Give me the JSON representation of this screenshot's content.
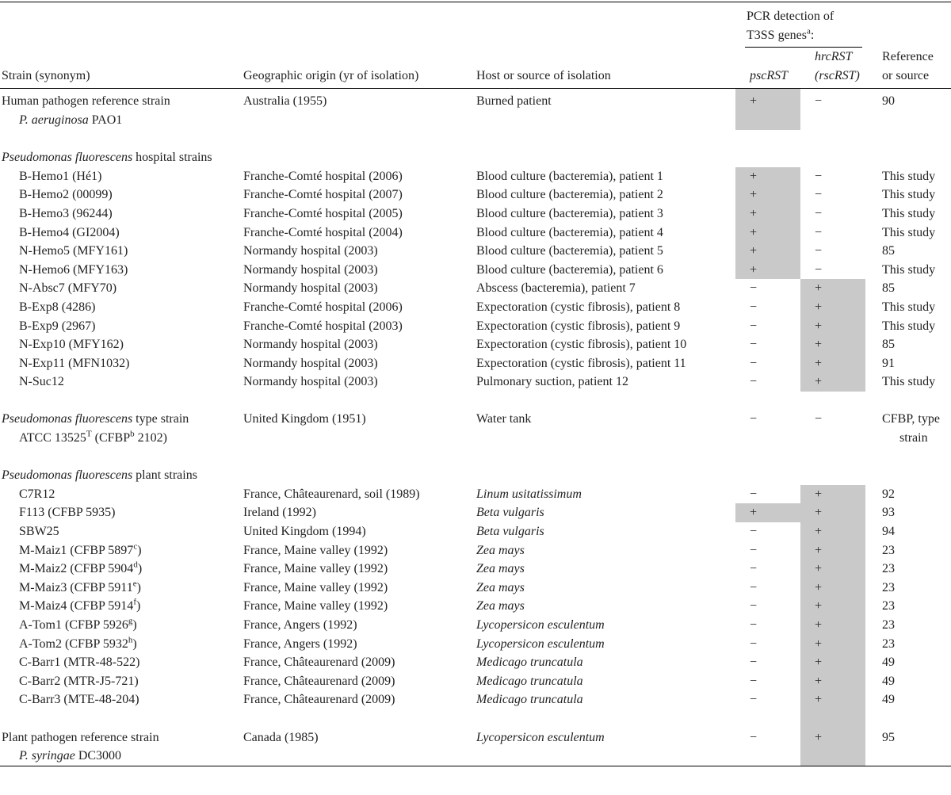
{
  "table": {
    "header": {
      "group": [
        "PCR detection of T3SS genes",
        {
          "sup": "a"
        },
        ":"
      ],
      "columns": [
        "Strain (synonym)",
        "Geographic origin (yr of isolation)",
        "Host or source of isolation",
        [
          {
            "i": "pscRST"
          }
        ],
        {
          "lines": [
            [
              {
                "i": "hrcRST"
              }
            ],
            [
              {
                "i": "(rscRST)"
              }
            ]
          ]
        },
        {
          "lines": [
            "Reference",
            "or source"
          ]
        }
      ]
    },
    "sections": [
      {
        "rows": [
          {
            "cells": [
              {
                "lines": [
                  "Human pathogen reference strain",
                  [
                    {
                      "i": "P. aeruginosa"
                    },
                    " PAO1"
                  ]
                ]
              },
              "Australia (1955)",
              "Burned patient",
              "+",
              "−",
              "90"
            ],
            "shaded": [
              true,
              false
            ]
          }
        ]
      },
      {
        "title": [
          {
            "i": "Pseudomonas fluorescens"
          },
          " hospital strains"
        ],
        "rows": [
          {
            "cells": [
              "B-Hemo1 (Hé1)",
              "Franche-Comté hospital (2006)",
              "Blood culture (bacteremia), patient 1",
              "+",
              "−",
              "This study"
            ],
            "shaded": [
              true,
              false
            ]
          },
          {
            "cells": [
              "B-Hemo2 (00099)",
              "Franche-Comté hospital (2007)",
              "Blood culture (bacteremia), patient 2",
              "+",
              "−",
              "This study"
            ],
            "shaded": [
              true,
              false
            ]
          },
          {
            "cells": [
              "B-Hemo3 (96244)",
              "Franche-Comté hospital (2005)",
              "Blood culture (bacteremia), patient 3",
              "+",
              "−",
              "This study"
            ],
            "shaded": [
              true,
              false
            ]
          },
          {
            "cells": [
              "B-Hemo4 (GI2004)",
              "Franche-Comté hospital (2004)",
              "Blood culture (bacteremia), patient 4",
              "+",
              "−",
              "This study"
            ],
            "shaded": [
              true,
              false
            ]
          },
          {
            "cells": [
              "N-Hemo5 (MFY161)",
              "Normandy hospital (2003)",
              "Blood culture (bacteremia), patient 5",
              "+",
              "−",
              "85"
            ],
            "shaded": [
              true,
              false
            ]
          },
          {
            "cells": [
              "N-Hemo6 (MFY163)",
              "Normandy hospital (2003)",
              "Blood culture (bacteremia), patient 6",
              "+",
              "−",
              "This study"
            ],
            "shaded": [
              true,
              false
            ]
          },
          {
            "cells": [
              "N-Absc7 (MFY70)",
              "Normandy hospital (2003)",
              "Abscess (bacteremia), patient 7",
              "−",
              "+",
              "85"
            ],
            "shaded": [
              false,
              true
            ]
          },
          {
            "cells": [
              "B-Exp8 (4286)",
              "Franche-Comté hospital (2006)",
              "Expectoration (cystic fibrosis), patient 8",
              "−",
              "+",
              "This study"
            ],
            "shaded": [
              false,
              true
            ]
          },
          {
            "cells": [
              "B-Exp9 (2967)",
              "Franche-Comté hospital (2003)",
              "Expectoration (cystic fibrosis), patient 9",
              "−",
              "+",
              "This study"
            ],
            "shaded": [
              false,
              true
            ]
          },
          {
            "cells": [
              "N-Exp10 (MFY162)",
              "Normandy hospital (2003)",
              "Expectoration (cystic fibrosis), patient 10",
              "−",
              "+",
              "85"
            ],
            "shaded": [
              false,
              true
            ]
          },
          {
            "cells": [
              "N-Exp11 (MFN1032)",
              "Normandy hospital (2003)",
              "Expectoration (cystic fibrosis), patient 11",
              "−",
              "+",
              "91"
            ],
            "shaded": [
              false,
              true
            ]
          },
          {
            "cells": [
              "N-Suc12",
              "Normandy hospital (2003)",
              "Pulmonary suction, patient 12",
              "−",
              "+",
              "This study"
            ],
            "shaded": [
              false,
              true
            ]
          }
        ]
      },
      {
        "rows": [
          {
            "cells": [
              {
                "lines": [
                  [
                    {
                      "i": "Pseudomonas fluorescens"
                    },
                    " type strain"
                  ],
                  [
                    "ATCC 13525",
                    {
                      "sup": "T"
                    },
                    " (CFBP",
                    {
                      "sup": "b"
                    },
                    " 2102)"
                  ]
                ]
              },
              "United Kingdom (1951)",
              "Water tank",
              "−",
              "−",
              {
                "lines": [
                  "CFBP, type",
                  "strain"
                ]
              }
            ],
            "shaded": [
              false,
              false
            ]
          }
        ]
      },
      {
        "title": [
          {
            "i": "Pseudomonas fluorescens"
          },
          " plant strains"
        ],
        "rows": [
          {
            "cells": [
              "C7R12",
              "France, Châteaurenard, soil (1989)",
              [
                {
                  "i": "Linum usitatissimum"
                }
              ],
              "−",
              "+",
              "92"
            ],
            "shaded": [
              false,
              true
            ]
          },
          {
            "cells": [
              "F113 (CFBP 5935)",
              "Ireland (1992)",
              [
                {
                  "i": "Beta vulgaris"
                }
              ],
              "+",
              "+",
              "93"
            ],
            "shaded": [
              true,
              true
            ]
          },
          {
            "cells": [
              "SBW25",
              "United Kingdom (1994)",
              [
                {
                  "i": "Beta vulgaris"
                }
              ],
              "−",
              "+",
              "94"
            ],
            "shaded": [
              false,
              true
            ]
          },
          {
            "cells": [
              [
                "M-Maiz1 (CFBP 5897",
                {
                  "sup": "c"
                },
                ")"
              ],
              "France, Maine valley (1992)",
              [
                {
                  "i": "Zea mays"
                }
              ],
              "−",
              "+",
              "23"
            ],
            "shaded": [
              false,
              true
            ]
          },
          {
            "cells": [
              [
                "M-Maiz2 (CFBP 5904",
                {
                  "sup": "d"
                },
                ")"
              ],
              "France, Maine valley (1992)",
              [
                {
                  "i": "Zea mays"
                }
              ],
              "−",
              "+",
              "23"
            ],
            "shaded": [
              false,
              true
            ]
          },
          {
            "cells": [
              [
                "M-Maiz3 (CFBP 5911",
                {
                  "sup": "e"
                },
                ")"
              ],
              "France, Maine valley (1992)",
              [
                {
                  "i": "Zea mays"
                }
              ],
              "−",
              "+",
              "23"
            ],
            "shaded": [
              false,
              true
            ]
          },
          {
            "cells": [
              [
                "M-Maiz4 (CFBP 5914",
                {
                  "sup": "f"
                },
                ")"
              ],
              "France, Maine valley (1992)",
              [
                {
                  "i": "Zea mays"
                }
              ],
              "−",
              "+",
              "23"
            ],
            "shaded": [
              false,
              true
            ]
          },
          {
            "cells": [
              [
                "A-Tom1 (CFBP 5926",
                {
                  "sup": "g"
                },
                ")"
              ],
              "France, Angers (1992)",
              [
                {
                  "i": "Lycopersicon esculentum"
                }
              ],
              "−",
              "+",
              "23"
            ],
            "shaded": [
              false,
              true
            ]
          },
          {
            "cells": [
              [
                "A-Tom2 (CFBP 5932",
                {
                  "sup": "h"
                },
                ")"
              ],
              "France, Angers (1992)",
              [
                {
                  "i": "Lycopersicon esculentum"
                }
              ],
              "−",
              "+",
              "23"
            ],
            "shaded": [
              false,
              true
            ]
          },
          {
            "cells": [
              "C-Barr1 (MTR-48-522)",
              "France, Châteaurenard (2009)",
              [
                {
                  "i": "Medicago truncatula"
                }
              ],
              "−",
              "+",
              "49"
            ],
            "shaded": [
              false,
              true
            ]
          },
          {
            "cells": [
              "C-Barr2 (MTR-J5-721)",
              "France, Châteaurenard (2009)",
              [
                {
                  "i": "Medicago truncatula"
                }
              ],
              "−",
              "+",
              "49"
            ],
            "shaded": [
              false,
              true
            ]
          },
          {
            "cells": [
              "C-Barr3 (MTE-48-204)",
              "France, Châteaurenard (2009)",
              [
                {
                  "i": "Medicago truncatula"
                }
              ],
              "−",
              "+",
              "49"
            ],
            "shaded": [
              false,
              true
            ]
          }
        ]
      },
      {
        "rows": [
          {
            "cells": [
              {
                "lines": [
                  "Plant pathogen reference strain",
                  [
                    {
                      "i": "P. syringae"
                    },
                    " DC3000"
                  ]
                ]
              },
              "Canada (1985)",
              [
                {
                  "i": "Lycopersicon esculentum"
                }
              ],
              "−",
              "+",
              "95"
            ],
            "shaded": [
              false,
              true
            ]
          }
        ]
      }
    ]
  }
}
